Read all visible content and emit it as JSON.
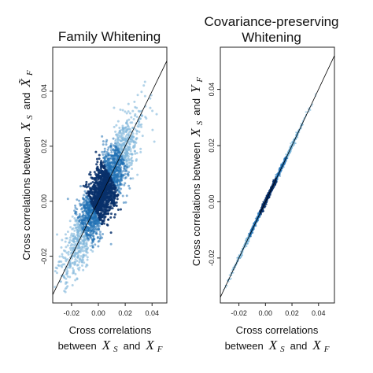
{
  "chart_data": [
    {
      "type": "scatter",
      "title": "Family Whitening",
      "xlabel": "Cross correlations",
      "xlabel_line2_prefix": "between",
      "xlabel_line2_math": {
        "var1": "X",
        "sub1": "S",
        "conj": "and",
        "var2": "X",
        "sub2": "F"
      },
      "ylabel_text": "Cross correlations between",
      "ylabel_math": {
        "var1": "X",
        "sub1": "S",
        "conj": "and",
        "var2": "X̃",
        "sub2": "F"
      },
      "xlim": [
        -0.034,
        0.051
      ],
      "ylim": [
        -0.037,
        0.056
      ],
      "xticks": [
        -0.02,
        0.0,
        0.02,
        0.04
      ],
      "xtick_labels": [
        "-0.02",
        "0.00",
        "0.02",
        "0.04"
      ],
      "yticks": [
        -0.02,
        0.0,
        0.02,
        0.04
      ],
      "ytick_labels": [
        "-0.02",
        "0.00",
        "0.02",
        "0.04"
      ],
      "reference_line": {
        "slope": 1,
        "intercept": 0
      },
      "point_cloud": {
        "center": [
          0.003,
          0.003
        ],
        "x_range": [
          -0.032,
          0.05
        ],
        "spread": 0.0065,
        "density": "high near center"
      },
      "colors": {
        "dense": "#08306b",
        "mid": "#2171b5",
        "sparse": "#7fb6da",
        "line": "#000000"
      }
    },
    {
      "type": "scatter",
      "title": "Covariance-preserving",
      "title_line2": "Whitening",
      "xlabel": "Cross correlations",
      "xlabel_line2_prefix": "between",
      "xlabel_line2_math": {
        "var1": "X",
        "sub1": "S",
        "conj": "and",
        "var2": "X",
        "sub2": "F"
      },
      "ylabel_text": "Cross correlations between",
      "ylabel_math": {
        "var1": "X",
        "sub1": "S",
        "conj": "and",
        "var2": "Y",
        "sub2": "F"
      },
      "xlim": [
        -0.034,
        0.052
      ],
      "ylim": [
        -0.036,
        0.055
      ],
      "xticks": [
        -0.02,
        0.0,
        0.02,
        0.04
      ],
      "xtick_labels": [
        "-0.02",
        "0.00",
        "0.02",
        "0.04"
      ],
      "yticks": [
        -0.02,
        0.0,
        0.02,
        0.04
      ],
      "ytick_labels": [
        "-0.02",
        "0.00",
        "0.02",
        "0.04"
      ],
      "reference_line": {
        "slope": 1,
        "intercept": 0
      },
      "point_cloud": {
        "center": [
          0.002,
          0.002
        ],
        "x_range": [
          -0.032,
          0.05
        ],
        "spread": 0.0006,
        "density": "high near center"
      },
      "colors": {
        "dense": "#08306b",
        "mid": "#2171b5",
        "sparse": "#6baed6",
        "line": "#000000"
      }
    }
  ]
}
